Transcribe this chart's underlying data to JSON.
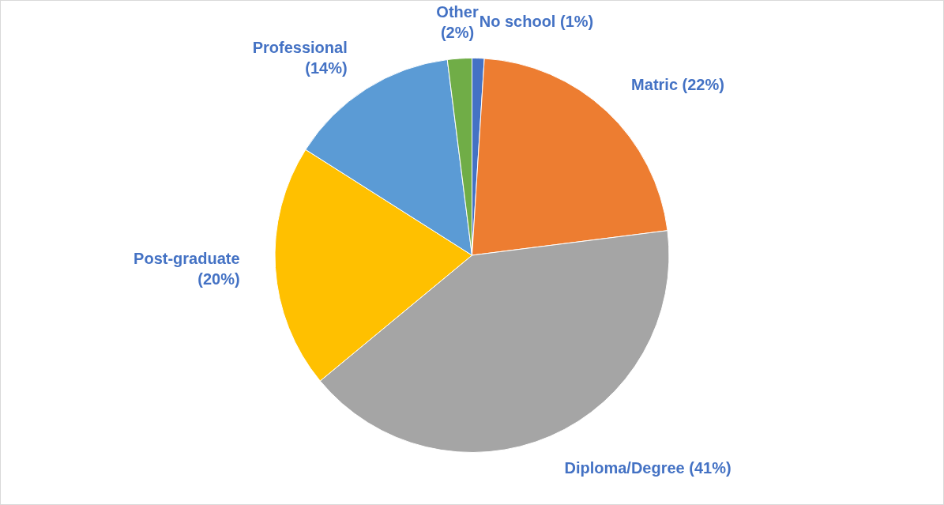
{
  "chart_data": {
    "type": "pie",
    "categories": [
      "No school",
      "Matric",
      "Diploma/Degree",
      "Post-graduate",
      "Professional",
      "Other"
    ],
    "values": [
      1,
      22,
      41,
      20,
      14,
      2
    ],
    "colors": [
      "#4472c4",
      "#ed7d31",
      "#a5a5a5",
      "#ffc000",
      "#5b9bd5",
      "#70ad47"
    ],
    "value_labels": [
      "(1%)",
      "(22%)",
      "(41%)",
      "(20%)",
      "(14%)",
      "(2%)"
    ],
    "legend": false
  }
}
